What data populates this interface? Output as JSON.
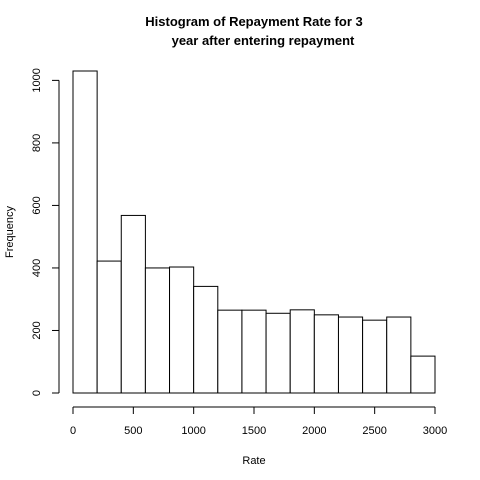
{
  "chart_data": {
    "type": "bar",
    "title_lines": [
      "Histogram of Repayment Rate for 3",
      "year after entering repayment"
    ],
    "xlabel": "Rate",
    "ylabel": "Frequency",
    "bin_edges": [
      0,
      200,
      400,
      600,
      800,
      1000,
      1200,
      1400,
      1600,
      1800,
      2000,
      2200,
      2400,
      2600,
      2800,
      3000
    ],
    "values": [
      1030,
      422,
      568,
      400,
      403,
      341,
      265,
      265,
      255,
      266,
      250,
      243,
      233,
      243,
      118
    ],
    "xlim": [
      0,
      3000
    ],
    "ylim": [
      0,
      1030
    ],
    "x_ticks": [
      "0",
      "500",
      "1000",
      "1500",
      "2000",
      "2500",
      "3000"
    ],
    "y_ticks": [
      "0",
      "200",
      "400",
      "600",
      "800",
      "1000"
    ],
    "grid": false,
    "bar_fill": "#ffffff",
    "bar_stroke": "#000000"
  }
}
